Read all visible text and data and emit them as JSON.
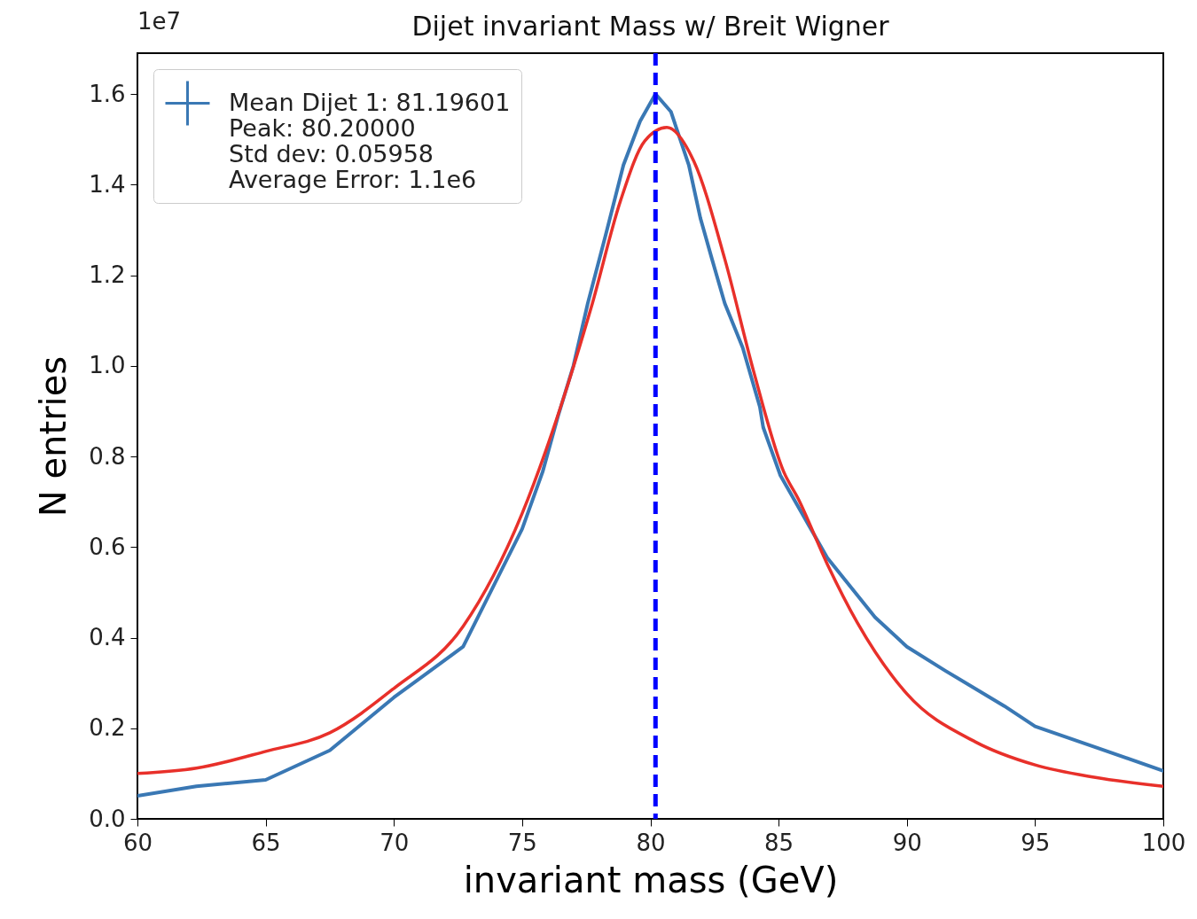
{
  "chart_data": {
    "type": "line",
    "title": "Dijet invariant Mass w/ Breit Wigner",
    "xlabel": "invariant mass (GeV)",
    "ylabel": "N entries",
    "annotations": [
      "1e7"
    ],
    "xlim": [
      60,
      100
    ],
    "xticks": [
      60,
      65,
      70,
      75,
      80,
      85,
      90,
      95,
      100
    ],
    "ylim": [
      0,
      1.69
    ],
    "yticks": [
      {
        "value": 0,
        "label": "0.0"
      },
      0.2,
      0.4,
      0.6,
      0.8,
      {
        "value": 1,
        "label": "1.0"
      },
      1.2,
      1.4,
      1.6
    ],
    "grid": false,
    "legend": "top left",
    "marker": "none",
    "line_style": "solid",
    "series": [
      {
        "name": "Mean Dijet 1: 81.19601\nPeak: 80.20000\nStd dev: 0.05958\nAverage Error: 1.1e6",
        "color": "#3a78b4",
        "x": [
          60,
          62.3,
          65,
          67.5,
          70,
          72.7,
          75,
          75.8,
          76.4,
          77,
          77.56,
          78.25,
          78.95,
          79.6,
          80.2,
          80.8,
          81.5,
          81.95,
          82.4,
          82.9,
          83.6,
          84.27,
          84.4,
          85.07,
          86.9,
          88.76,
          90,
          91.5,
          93.8,
          95,
          97.3,
          100
        ],
        "values": [
          0.051,
          0.072,
          0.086,
          0.151,
          0.268,
          0.38,
          0.64,
          0.766,
          0.889,
          1.0,
          1.138,
          1.287,
          1.443,
          1.54,
          1.6,
          1.561,
          1.443,
          1.326,
          1.236,
          1.138,
          1.04,
          0.909,
          0.864,
          0.758,
          0.576,
          0.445,
          0.38,
          0.327,
          0.249,
          0.204,
          0.159,
          0.106
        ]
      },
      {
        "color": "#e8302a",
        "x": [
          60,
          62.3,
          65,
          67.5,
          70,
          72.7,
          75,
          76.5,
          77.7,
          78.84,
          79.78,
          80.64,
          81.7,
          82.9,
          84.03,
          85.2,
          85.76,
          86.9,
          88.07,
          90,
          92.67,
          95,
          97.3,
          100
        ],
        "values": [
          0.1,
          0.112,
          0.149,
          0.19,
          0.288,
          0.425,
          0.674,
          0.909,
          1.13,
          1.365,
          1.496,
          1.526,
          1.451,
          1.236,
          0.987,
          0.766,
          0.707,
          0.562,
          0.433,
          0.276,
          0.17,
          0.119,
          0.092,
          0.072
        ]
      }
    ],
    "ref_lines": [
      {
        "axis": "x",
        "value": 80.2,
        "color": "#0000ff",
        "line_style": "dashed"
      }
    ]
  }
}
